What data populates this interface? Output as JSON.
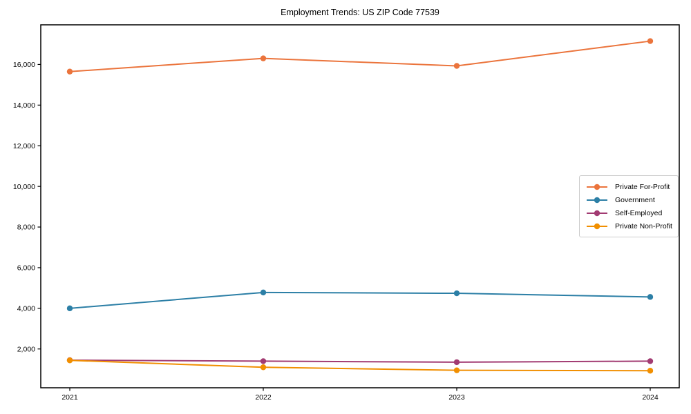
{
  "chart_data": {
    "type": "line",
    "title": "Employment Trends: US ZIP Code 77539",
    "categories": [
      "2021",
      "2022",
      "2023",
      "2024"
    ],
    "series": [
      {
        "name": "Private For-Profit",
        "color": "#EB743C",
        "values": [
          15650,
          16300,
          15930,
          17150
        ]
      },
      {
        "name": "Government",
        "color": "#2C7FA6",
        "values": [
          4000,
          4780,
          4740,
          4560
        ]
      },
      {
        "name": "Self-Employed",
        "color": "#A23B72",
        "values": [
          1450,
          1400,
          1350,
          1400
        ]
      },
      {
        "name": "Private Non-Profit",
        "color": "#F18F01",
        "values": [
          1440,
          1100,
          950,
          930
        ]
      }
    ],
    "xlabel": "",
    "ylabel": "",
    "ylim": [
      90,
      17950
    ],
    "yticks": [
      2000,
      4000,
      6000,
      8000,
      10000,
      12000,
      14000,
      16000
    ],
    "ytick_labels": [
      "2,000",
      "4,000",
      "6,000",
      "8,000",
      "10,000",
      "12,000",
      "14,000",
      "16,000"
    ],
    "xtick_labels": [
      "2021",
      "2022",
      "2023",
      "2024"
    ],
    "grid": false,
    "legend_position": "center-right",
    "marker": "circle",
    "line_width": 2,
    "marker_radius": 4.2,
    "axis_color": "#000000"
  }
}
